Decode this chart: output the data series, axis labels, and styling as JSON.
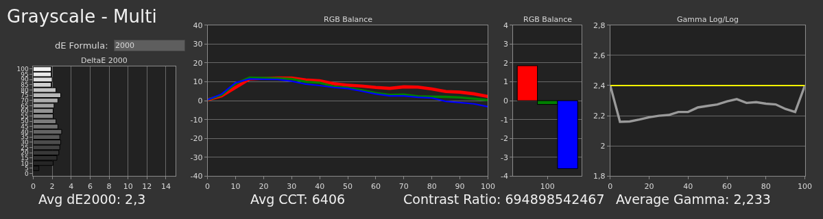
{
  "chart_data": [
    {
      "type": "bar",
      "orientation": "horizontal",
      "title": "DeltaE 2000",
      "annotations": [
        "Grayscale - Multi",
        "dE Formula:",
        "2000",
        "Avg dE2000: 2,3"
      ],
      "categories": [
        "100",
        "95",
        "90",
        "85",
        "80",
        "75",
        "70",
        "65",
        "60",
        "55",
        "50",
        "45",
        "40",
        "35",
        "30",
        "25",
        "20",
        "15",
        "10",
        "5",
        "0"
      ],
      "values": [
        1.9,
        1.9,
        2.0,
        1.9,
        2.4,
        2.9,
        2.6,
        2.2,
        2.1,
        2.1,
        2.4,
        2.6,
        3.0,
        2.8,
        2.9,
        2.8,
        2.7,
        2.5,
        2.1,
        0.6,
        null
      ],
      "colors": [
        "#f4f4f4",
        "#e8e8e8",
        "#dcdcdc",
        "#d0d0d0",
        "#c4c4c4",
        "#b8b8b8",
        "#acacac",
        "#a0a0a0",
        "#949494",
        "#888888",
        "#7c7c7c",
        "#707070",
        "#646464",
        "#585858",
        "#4c4c4c",
        "#424242",
        "#383838",
        "#2e2e2e",
        "#262626",
        "#1e1e1e",
        "#181818"
      ],
      "xlim": [
        0,
        15
      ],
      "xticks": [
        0,
        2,
        4,
        6,
        8,
        10,
        12,
        14
      ],
      "grid": "x"
    },
    {
      "type": "line",
      "title": "RGB Balance",
      "annotations": [
        "Avg CCT: 6406"
      ],
      "x": [
        0,
        5,
        10,
        15,
        20,
        25,
        30,
        35,
        40,
        45,
        50,
        55,
        60,
        65,
        70,
        75,
        80,
        85,
        90,
        95,
        100
      ],
      "series": [
        {
          "color": "#ff0000",
          "values": [
            0.5,
            2.5,
            7,
            11.5,
            11.8,
            12,
            12,
            11,
            10.5,
            9,
            8.2,
            7.7,
            7,
            6.5,
            7.3,
            7.2,
            6.2,
            4.8,
            4.5,
            3.6,
            2.2
          ]
        },
        {
          "color": "#008000",
          "values": [
            0.5,
            3,
            9,
            12.2,
            12,
            11.8,
            11.5,
            10,
            9.5,
            7.5,
            6.8,
            5.5,
            4,
            3,
            3.2,
            2.3,
            2.1,
            2,
            1.7,
            1,
            0.3
          ]
        },
        {
          "color": "#0000ff",
          "values": [
            0.5,
            3.5,
            9.5,
            11.5,
            11.3,
            11.2,
            10.3,
            8.8,
            8,
            7,
            6.4,
            5,
            3.5,
            2.5,
            2.5,
            1.8,
            1.4,
            -0.4,
            -1,
            -1.7,
            -3.2
          ]
        }
      ],
      "xlim": [
        0,
        100
      ],
      "xticks": [
        0,
        10,
        20,
        30,
        40,
        50,
        60,
        70,
        80,
        90,
        100
      ],
      "ylim": [
        -40,
        40
      ],
      "yticks": [
        -40,
        -30,
        -20,
        -10,
        0,
        10,
        20,
        30,
        40
      ],
      "grid": "y"
    },
    {
      "type": "bar",
      "title": "RGB Balance",
      "annotations": [
        "Contrast Ratio: 694898542467"
      ],
      "categories": [
        "100"
      ],
      "series": [
        {
          "color": "#ff0000",
          "values": [
            1.85
          ]
        },
        {
          "color": "#008000",
          "values": [
            -0.2
          ]
        },
        {
          "color": "#0000ff",
          "values": [
            -3.6
          ]
        }
      ],
      "ylim": [
        -4,
        4
      ],
      "yticks": [
        -4,
        -3,
        -2,
        -1,
        0,
        1,
        2,
        3,
        4
      ],
      "grid": "y"
    },
    {
      "type": "line",
      "title": "Gamma Log/Log",
      "annotations": [
        "Average Gamma: 2,233"
      ],
      "x": [
        0,
        5,
        10,
        15,
        20,
        25,
        30,
        35,
        40,
        45,
        50,
        55,
        60,
        65,
        70,
        75,
        80,
        85,
        90,
        95,
        100
      ],
      "series": [
        {
          "color": "#9a9a9a",
          "values": [
            2.4,
            2.16,
            2.162,
            2.175,
            2.19,
            2.2,
            2.205,
            2.225,
            2.225,
            2.255,
            2.265,
            2.275,
            2.295,
            2.31,
            2.285,
            2.29,
            2.28,
            2.275,
            2.245,
            2.225,
            2.4
          ]
        },
        {
          "color": "#ffff00",
          "x": [
            0,
            100
          ],
          "values": [
            2.4,
            2.4
          ]
        }
      ],
      "xlim": [
        0,
        100
      ],
      "xticks": [
        0,
        20,
        40,
        60,
        80,
        100
      ],
      "ylim": [
        1.8,
        2.8
      ],
      "yticks": [
        {
          "value": 1.8,
          "label": "1,8"
        },
        {
          "value": 2,
          "label": "2"
        },
        {
          "value": 2.2,
          "label": "2,2"
        },
        {
          "value": 2.4,
          "label": "2,4"
        },
        {
          "value": 2.6,
          "label": "2,6"
        },
        {
          "value": 2.8,
          "label": "2,8"
        }
      ],
      "grid": "y"
    }
  ]
}
